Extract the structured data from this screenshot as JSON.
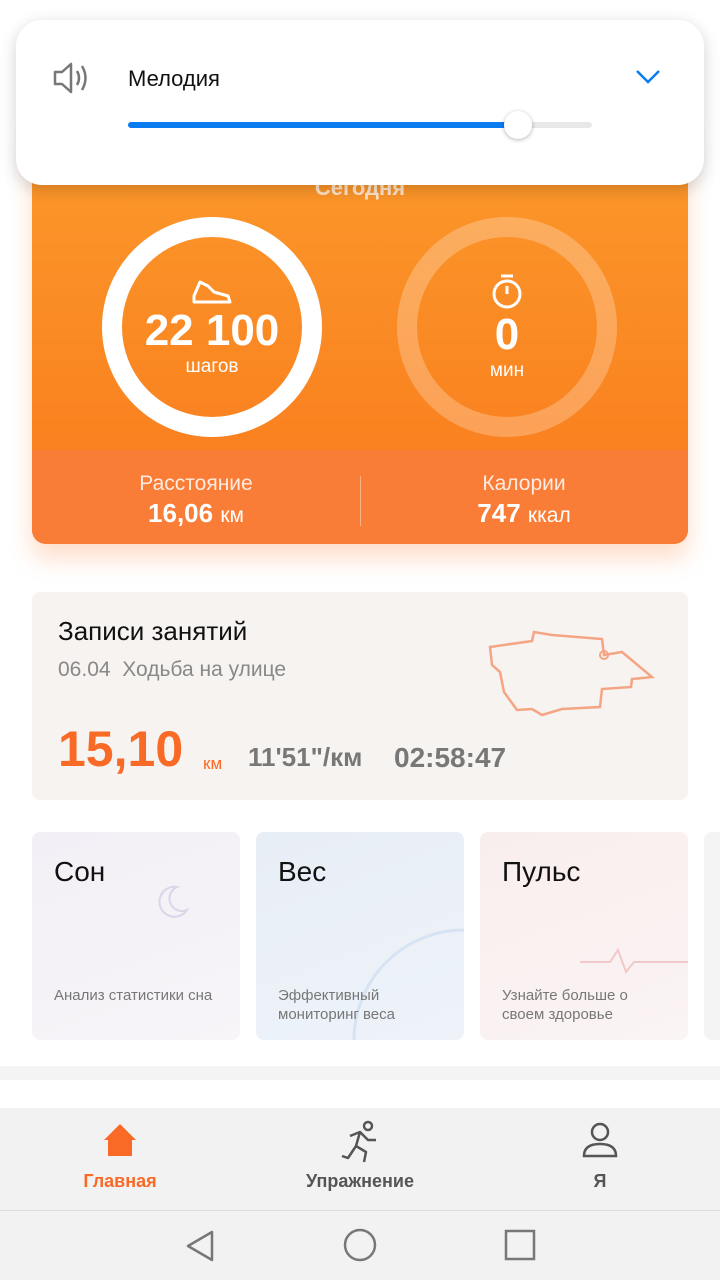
{
  "volume_panel": {
    "label": "Мелодия",
    "level_percent": 84,
    "accent": "#0a7cf0",
    "icon": "speaker-icon",
    "expand_icon": "chevron-down-icon"
  },
  "summary": {
    "title": "Сегодня",
    "steps": "22 100",
    "steps_unit": "шагов",
    "minutes": "0",
    "minutes_unit": "мин",
    "distance_label": "Расстояние",
    "distance_value": "16,06",
    "distance_unit": "км",
    "calories_label": "Калории",
    "calories_value": "747",
    "calories_unit": "ккал",
    "accent": "#fa7d1f"
  },
  "records": {
    "title": "Записи занятий",
    "date": "06.04",
    "type": "Ходьба на улице",
    "distance": "15,10",
    "distance_unit": "км",
    "pace": "11'51\"/км",
    "duration": "02:58:47"
  },
  "tiles": [
    {
      "title": "Сон",
      "desc": "Анализ статистики сна"
    },
    {
      "title": "Вес",
      "desc": "Эффективный мониторинг веса"
    },
    {
      "title": "Пульс",
      "desc": "Узнайте больше о своем здоровье"
    }
  ],
  "nav": [
    {
      "label": "Главная",
      "icon": "home-icon",
      "active": true
    },
    {
      "label": "Упражнение",
      "icon": "running-icon"
    },
    {
      "label": "Я",
      "icon": "person-icon"
    }
  ]
}
